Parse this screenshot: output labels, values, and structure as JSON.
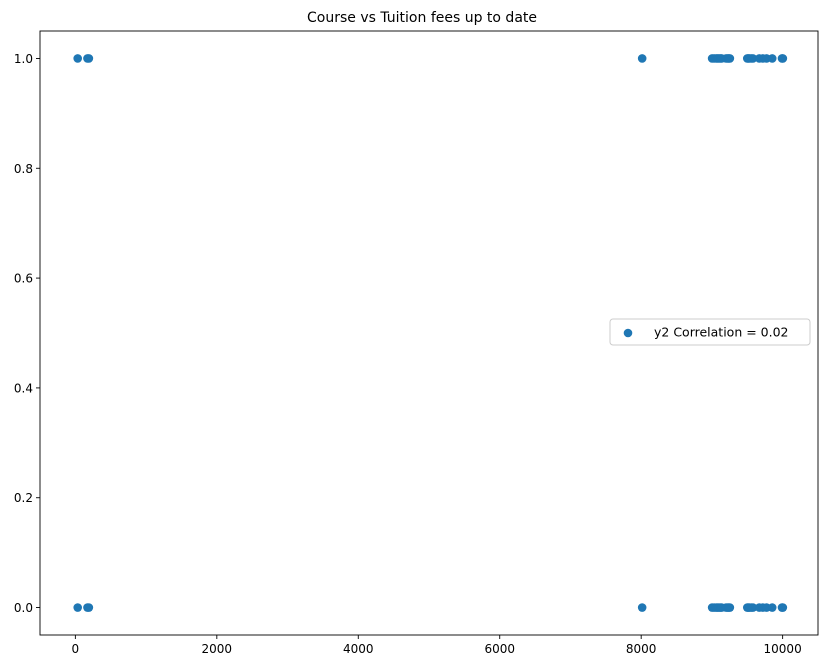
{
  "chart_data": {
    "type": "scatter",
    "title": "Course vs Tuition fees up to date",
    "xlabel": "",
    "ylabel": "",
    "xlim": [
      -500,
      10500
    ],
    "ylim": [
      -0.05,
      1.05
    ],
    "x_ticks": [
      0,
      2000,
      4000,
      6000,
      8000,
      10000
    ],
    "y_ticks": [
      0.0,
      0.2,
      0.4,
      0.6,
      0.8,
      1.0
    ],
    "x_tick_labels": [
      "0",
      "2000",
      "4000",
      "6000",
      "8000",
      "10000"
    ],
    "y_tick_labels": [
      "0.0",
      "0.2",
      "0.4",
      "0.6",
      "0.8",
      "1.0"
    ],
    "grid": false,
    "legend_position": "center-right",
    "series": [
      {
        "name": "y2 Correlation = 0.02",
        "color": "#1f77b4",
        "points": [
          [
            33,
            1
          ],
          [
            33,
            0
          ],
          [
            171,
            1
          ],
          [
            171,
            0
          ],
          [
            191,
            1
          ],
          [
            191,
            0
          ],
          [
            8014,
            1
          ],
          [
            8014,
            0
          ],
          [
            9003,
            1
          ],
          [
            9003,
            0
          ],
          [
            9031,
            1
          ],
          [
            9031,
            0
          ],
          [
            9060,
            1
          ],
          [
            9060,
            0
          ],
          [
            9080,
            1
          ],
          [
            9080,
            0
          ],
          [
            9100,
            1
          ],
          [
            9100,
            0
          ],
          [
            9120,
            1
          ],
          [
            9120,
            0
          ],
          [
            9138,
            1
          ],
          [
            9138,
            0
          ],
          [
            9201,
            1
          ],
          [
            9201,
            0
          ],
          [
            9223,
            1
          ],
          [
            9223,
            0
          ],
          [
            9238,
            1
          ],
          [
            9238,
            0
          ],
          [
            9254,
            1
          ],
          [
            9254,
            0
          ],
          [
            9500,
            1
          ],
          [
            9500,
            0
          ],
          [
            9515,
            1
          ],
          [
            9515,
            0
          ],
          [
            9530,
            1
          ],
          [
            9530,
            0
          ],
          [
            9556,
            1
          ],
          [
            9556,
            0
          ],
          [
            9580,
            1
          ],
          [
            9580,
            0
          ],
          [
            9670,
            1
          ],
          [
            9670,
            0
          ],
          [
            9720,
            1
          ],
          [
            9720,
            0
          ],
          [
            9773,
            1
          ],
          [
            9773,
            0
          ],
          [
            9853,
            1
          ],
          [
            9853,
            0
          ],
          [
            9991,
            1
          ],
          [
            9991,
            0
          ],
          [
            10003,
            1
          ],
          [
            10003,
            0
          ]
        ]
      }
    ]
  }
}
